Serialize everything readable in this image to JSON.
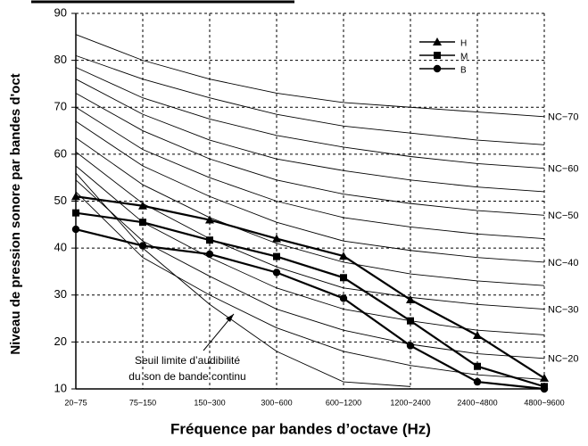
{
  "chart_data": {
    "type": "line",
    "y_label": "Niveau de pression sonore par bandes d'oct",
    "x_label": "Fréquence par bandes d’octave (Hz)",
    "categories": [
      "20~75",
      "75~150",
      "150~300",
      "300~600",
      "600~1200",
      "1200~2400",
      "2400~4800",
      "4800~9600"
    ],
    "ylim": [
      10,
      90
    ],
    "yticks": [
      10,
      20,
      30,
      40,
      50,
      60,
      70,
      80,
      90
    ],
    "grid": true,
    "series": [
      {
        "name": "H",
        "color": "#000000",
        "marker": "triangle",
        "values": [
          51,
          49,
          46,
          42,
          38.3,
          29,
          21.4,
          12.3
        ]
      },
      {
        "name": "M",
        "color": "#000000",
        "marker": "square",
        "values": [
          47.5,
          45.5,
          41.7,
          38.2,
          33.7,
          24.5,
          14.8,
          10.5
        ]
      },
      {
        "name": "B",
        "color": "#000000",
        "marker": "circle",
        "values": [
          44,
          40.5,
          38.7,
          34.8,
          29.3,
          19.2,
          11.5,
          10
        ]
      }
    ],
    "legend": "top-right",
    "nc_curves": [
      {
        "label": "NC−70",
        "values": [
          85.5,
          80,
          76,
          73,
          71,
          70,
          69,
          68
        ]
      },
      {
        "label": null,
        "values": [
          81,
          76,
          72,
          68.5,
          66,
          64.5,
          63,
          62
        ]
      },
      {
        "label": "NC−60",
        "values": [
          78.5,
          72,
          67.5,
          64,
          61.5,
          59.5,
          58,
          57
        ]
      },
      {
        "label": null,
        "values": [
          76,
          68.5,
          63,
          59,
          56.5,
          54.5,
          53,
          52
        ]
      },
      {
        "label": "NC−50",
        "values": [
          73,
          65,
          59,
          54.5,
          51.5,
          49.5,
          48,
          47
        ]
      },
      {
        "label": null,
        "values": [
          70,
          61,
          55,
          50,
          46.5,
          44.5,
          43,
          42
        ]
      },
      {
        "label": "NC−40",
        "values": [
          67,
          57.5,
          51,
          45.5,
          41.5,
          39.5,
          38,
          37
        ]
      },
      {
        "label": null,
        "values": [
          63.5,
          53.5,
          46.5,
          41,
          37,
          34.5,
          33,
          32
        ]
      },
      {
        "label": "NC−30",
        "values": [
          60.5,
          49.5,
          42,
          36,
          31.5,
          29.5,
          28,
          27
        ]
      },
      {
        "label": null,
        "values": [
          57.5,
          45.5,
          38,
          31.5,
          27,
          24.5,
          22.5,
          21.5
        ]
      },
      {
        "label": "NC−20",
        "values": [
          54.5,
          41.5,
          34,
          27,
          22.5,
          19.5,
          17.5,
          16.5
        ]
      },
      {
        "label": null,
        "values": [
          52,
          38,
          30,
          23,
          18,
          15,
          13,
          12
        ]
      }
    ],
    "threshold": {
      "label": [
        "Seuil limite d’audibilité",
        "du son de bande continu"
      ],
      "values": [
        56,
        40,
        28,
        18,
        11.5,
        10.5,
        null,
        null
      ]
    }
  }
}
